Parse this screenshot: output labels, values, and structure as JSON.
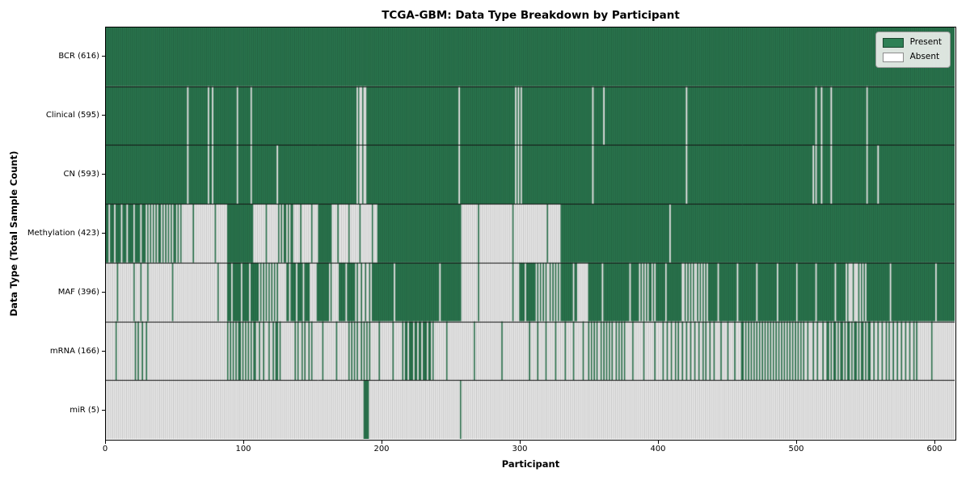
{
  "chart_data": {
    "type": "heatmap",
    "title": "TCGA-GBM: Data Type Breakdown by Participant",
    "xlabel": "Participant",
    "ylabel": "Data Type (Total Sample Count)",
    "x_ticks": [
      "0",
      "100",
      "200",
      "300",
      "400",
      "500",
      "600"
    ],
    "x_range": [
      0,
      616
    ],
    "n_participants": 616,
    "grid": false,
    "legend_position": "upper right",
    "cell_states": {
      "present": 1,
      "absent": 0
    },
    "colors": {
      "present": "#2e8055",
      "absent": "#ffffff",
      "bar_edge": "rgba(0,0,0,0.35)",
      "separator": "#141414",
      "axis": "#000000",
      "legend_bg": "rgba(235,239,235,0.92)"
    },
    "legend": [
      {
        "label": "Present",
        "state": "present"
      },
      {
        "label": "Absent",
        "state": "absent"
      }
    ],
    "rows": [
      {
        "label": "BCR (616)",
        "data_type": "BCR",
        "total_samples": 616,
        "segments": [
          [
            0,
            616,
            1
          ]
        ]
      },
      {
        "label": "Clinical (595)",
        "data_type": "Clinical",
        "total_samples": 595,
        "segments": [
          [
            0,
            616,
            1
          ]
        ],
        "absent_at": [
          59,
          74,
          77,
          95,
          105,
          182,
          184,
          185,
          187,
          188,
          256,
          297,
          299,
          301,
          353,
          361,
          421,
          515,
          519,
          526,
          552
        ]
      },
      {
        "label": "CN (593)",
        "data_type": "CN",
        "total_samples": 593,
        "segments": [
          [
            0,
            616,
            1
          ]
        ],
        "absent_at": [
          59,
          74,
          77,
          95,
          105,
          124,
          182,
          184,
          185,
          187,
          188,
          256,
          297,
          299,
          301,
          353,
          421,
          513,
          515,
          519,
          526,
          552,
          560
        ]
      },
      {
        "label": "Methylation (423)",
        "data_type": "Methylation",
        "total_samples": 423,
        "segments": [
          [
            0,
            30,
            0.78
          ],
          [
            30,
            55,
            0.55
          ],
          [
            55,
            88,
            0.06
          ],
          [
            88,
            107,
            1
          ],
          [
            107,
            125,
            0.05
          ],
          [
            125,
            137,
            0.6
          ],
          [
            137,
            154,
            0.12
          ],
          [
            154,
            164,
            1
          ],
          [
            164,
            197,
            0.12
          ],
          [
            197,
            258,
            1
          ],
          [
            258,
            330,
            0.04
          ],
          [
            330,
            616,
            1
          ]
        ],
        "absent_at": [
          409
        ]
      },
      {
        "label": "MAF (396)",
        "data_type": "MAF",
        "total_samples": 396,
        "segments": [
          [
            0,
            18,
            0.06
          ],
          [
            18,
            32,
            0.2
          ],
          [
            32,
            88,
            0.03
          ],
          [
            88,
            110,
            0.85
          ],
          [
            110,
            125,
            0.5
          ],
          [
            125,
            131,
            0.06
          ],
          [
            131,
            148,
            0.8
          ],
          [
            148,
            153,
            0.06
          ],
          [
            153,
            164,
            0.95
          ],
          [
            164,
            170,
            0.1
          ],
          [
            170,
            181,
            0.9
          ],
          [
            181,
            193,
            0.35
          ],
          [
            193,
            258,
            0.97
          ],
          [
            258,
            300,
            0.04
          ],
          [
            300,
            312,
            0.9
          ],
          [
            312,
            330,
            0.45
          ],
          [
            330,
            342,
            0.95
          ],
          [
            342,
            351,
            0.06
          ],
          [
            351,
            386,
            0.95
          ],
          [
            386,
            400,
            0.55
          ],
          [
            400,
            419,
            0.92
          ],
          [
            419,
            437,
            0.45
          ],
          [
            437,
            537,
            0.93
          ],
          [
            537,
            548,
            0.25
          ],
          [
            548,
            553,
            0.5
          ],
          [
            553,
            616,
            0.97
          ]
        ]
      },
      {
        "label": "mRNA (166)",
        "data_type": "mRNA",
        "total_samples": 166,
        "segments": [
          [
            0,
            22,
            0.07
          ],
          [
            22,
            32,
            0.35
          ],
          [
            32,
            88,
            0
          ],
          [
            88,
            110,
            0.55
          ],
          [
            110,
            121,
            0.3
          ],
          [
            121,
            127,
            0.65
          ],
          [
            127,
            136,
            0
          ],
          [
            136,
            152,
            0.4
          ],
          [
            152,
            175,
            0.1
          ],
          [
            175,
            193,
            0.45
          ],
          [
            193,
            215,
            0.1
          ],
          [
            215,
            238,
            0.7
          ],
          [
            238,
            310,
            0.05
          ],
          [
            310,
            349,
            0.15
          ],
          [
            349,
            378,
            0.45
          ],
          [
            378,
            403,
            0.12
          ],
          [
            403,
            439,
            0.35
          ],
          [
            439,
            462,
            0.2
          ],
          [
            462,
            505,
            0.5
          ],
          [
            505,
            524,
            0.3
          ],
          [
            524,
            556,
            0.6
          ],
          [
            556,
            590,
            0.35
          ],
          [
            590,
            616,
            0.05
          ]
        ]
      },
      {
        "label": "miR (5)",
        "data_type": "miR",
        "total_samples": 5,
        "segments": [
          [
            0,
            616,
            0
          ]
        ],
        "present_at": [
          187,
          188,
          189,
          190,
          257
        ]
      }
    ]
  }
}
